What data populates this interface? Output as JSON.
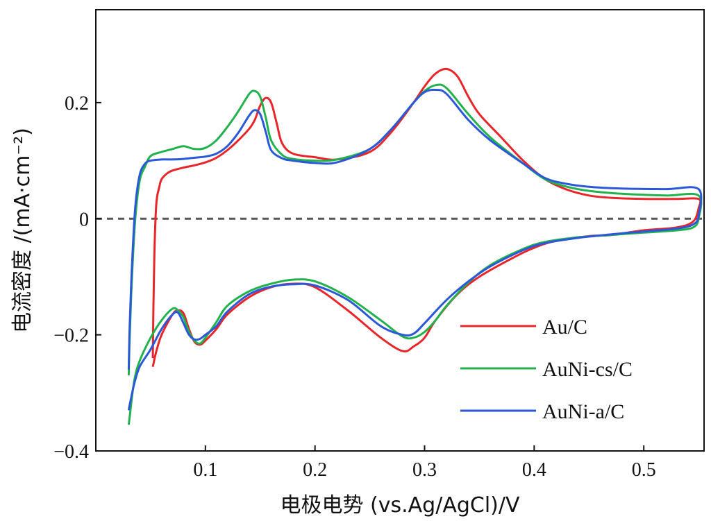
{
  "chart_data": {
    "type": "line",
    "xlabel": "电极电势 (vs.Ag/AgCl)/V",
    "ylabel": "电流密度 /(mA·cm⁻²)",
    "xlim": [
      0.0,
      0.555
    ],
    "ylim": [
      -0.4,
      0.36
    ],
    "xticks": [
      0.1,
      0.2,
      0.3,
      0.4,
      0.5
    ],
    "xtick_labels": [
      "0.1",
      "0.2",
      "0.3",
      "0.4",
      "0.5"
    ],
    "yticks": [
      0.2,
      0.0,
      -0.2,
      -0.4
    ],
    "ytick_labels": [
      "0.2",
      "0",
      "−0.2",
      "−0.4"
    ],
    "reference_line": {
      "y": 0,
      "style": "dashed",
      "color": "#555555"
    },
    "legend_position": "bottom-right",
    "grid": false,
    "series": [
      {
        "name": "Au/C",
        "color": "#e8262a",
        "x": [
          0.052,
          0.053,
          0.055,
          0.058,
          0.06,
          0.065,
          0.07,
          0.08,
          0.09,
          0.1,
          0.11,
          0.12,
          0.13,
          0.14,
          0.145,
          0.15,
          0.155,
          0.16,
          0.165,
          0.17,
          0.18,
          0.2,
          0.22,
          0.25,
          0.27,
          0.29,
          0.3,
          0.31,
          0.32,
          0.33,
          0.34,
          0.35,
          0.37,
          0.39,
          0.41,
          0.43,
          0.45,
          0.47,
          0.5,
          0.53,
          0.55,
          0.55,
          0.545,
          0.53,
          0.5,
          0.47,
          0.45,
          0.42,
          0.4,
          0.38,
          0.35,
          0.33,
          0.31,
          0.3,
          0.29,
          0.28,
          0.26,
          0.23,
          0.2,
          0.18,
          0.16,
          0.14,
          0.12,
          0.11,
          0.1,
          0.095,
          0.09,
          0.085,
          0.08,
          0.075,
          0.07,
          0.06,
          0.055,
          0.052
        ],
        "y": [
          -0.24,
          -0.1,
          0.02,
          0.055,
          0.068,
          0.078,
          0.083,
          0.088,
          0.092,
          0.097,
          0.105,
          0.118,
          0.135,
          0.155,
          0.17,
          0.195,
          0.208,
          0.2,
          0.165,
          0.13,
          0.112,
          0.106,
          0.102,
          0.115,
          0.15,
          0.2,
          0.228,
          0.25,
          0.258,
          0.245,
          0.21,
          0.18,
          0.14,
          0.1,
          0.068,
          0.05,
          0.04,
          0.036,
          0.034,
          0.034,
          0.034,
          0.018,
          -0.005,
          -0.015,
          -0.02,
          -0.028,
          -0.03,
          -0.038,
          -0.05,
          -0.068,
          -0.1,
          -0.13,
          -0.175,
          -0.205,
          -0.22,
          -0.228,
          -0.205,
          -0.158,
          -0.118,
          -0.112,
          -0.118,
          -0.135,
          -0.165,
          -0.19,
          -0.21,
          -0.217,
          -0.212,
          -0.19,
          -0.163,
          -0.158,
          -0.165,
          -0.2,
          -0.23,
          -0.255
        ]
      },
      {
        "name": "AuNi-cs/C",
        "color": "#22b24c",
        "x": [
          0.03,
          0.031,
          0.033,
          0.036,
          0.04,
          0.045,
          0.05,
          0.06,
          0.07,
          0.08,
          0.09,
          0.1,
          0.11,
          0.12,
          0.13,
          0.14,
          0.145,
          0.15,
          0.155,
          0.16,
          0.17,
          0.18,
          0.2,
          0.22,
          0.25,
          0.27,
          0.29,
          0.3,
          0.31,
          0.32,
          0.34,
          0.36,
          0.39,
          0.41,
          0.43,
          0.45,
          0.48,
          0.52,
          0.55,
          0.55,
          0.545,
          0.53,
          0.5,
          0.47,
          0.44,
          0.41,
          0.39,
          0.36,
          0.34,
          0.32,
          0.31,
          0.3,
          0.29,
          0.28,
          0.26,
          0.23,
          0.2,
          0.18,
          0.16,
          0.14,
          0.12,
          0.11,
          0.1,
          0.095,
          0.09,
          0.085,
          0.08,
          0.075,
          0.07,
          0.06,
          0.05,
          0.04,
          0.035,
          0.031,
          0.03
        ],
        "y": [
          -0.27,
          -0.2,
          -0.1,
          0.0,
          0.065,
          0.09,
          0.108,
          0.115,
          0.12,
          0.125,
          0.12,
          0.122,
          0.135,
          0.158,
          0.185,
          0.215,
          0.22,
          0.21,
          0.175,
          0.135,
          0.11,
          0.103,
          0.1,
          0.102,
          0.12,
          0.155,
          0.2,
          0.22,
          0.23,
          0.225,
          0.18,
          0.14,
          0.095,
          0.068,
          0.055,
          0.048,
          0.043,
          0.04,
          0.04,
          0.0,
          -0.015,
          -0.02,
          -0.024,
          -0.028,
          -0.032,
          -0.04,
          -0.052,
          -0.08,
          -0.11,
          -0.15,
          -0.175,
          -0.195,
          -0.205,
          -0.203,
          -0.175,
          -0.135,
          -0.108,
          -0.105,
          -0.112,
          -0.125,
          -0.15,
          -0.178,
          -0.205,
          -0.215,
          -0.21,
          -0.195,
          -0.17,
          -0.158,
          -0.155,
          -0.175,
          -0.205,
          -0.245,
          -0.28,
          -0.34,
          -0.355
        ]
      },
      {
        "name": "AuNi-a/C",
        "color": "#2a58d8",
        "x": [
          0.03,
          0.031,
          0.033,
          0.036,
          0.04,
          0.045,
          0.05,
          0.06,
          0.07,
          0.08,
          0.09,
          0.1,
          0.11,
          0.12,
          0.13,
          0.14,
          0.145,
          0.15,
          0.155,
          0.16,
          0.17,
          0.18,
          0.2,
          0.22,
          0.25,
          0.27,
          0.29,
          0.3,
          0.31,
          0.32,
          0.34,
          0.36,
          0.39,
          0.41,
          0.43,
          0.45,
          0.48,
          0.52,
          0.55,
          0.55,
          0.545,
          0.53,
          0.5,
          0.47,
          0.44,
          0.41,
          0.39,
          0.36,
          0.34,
          0.32,
          0.3,
          0.29,
          0.28,
          0.26,
          0.23,
          0.2,
          0.18,
          0.16,
          0.14,
          0.12,
          0.11,
          0.1,
          0.095,
          0.09,
          0.085,
          0.08,
          0.075,
          0.07,
          0.06,
          0.05,
          0.04,
          0.035,
          0.031,
          0.03
        ],
        "y": [
          -0.26,
          -0.18,
          -0.08,
          0.02,
          0.075,
          0.095,
          0.1,
          0.102,
          0.102,
          0.103,
          0.105,
          0.107,
          0.112,
          0.125,
          0.148,
          0.178,
          0.187,
          0.18,
          0.15,
          0.118,
          0.104,
          0.1,
          0.096,
          0.097,
          0.12,
          0.155,
          0.2,
          0.218,
          0.222,
          0.215,
          0.17,
          0.135,
          0.095,
          0.07,
          0.06,
          0.055,
          0.052,
          0.051,
          0.051,
          0.005,
          -0.01,
          -0.017,
          -0.022,
          -0.027,
          -0.033,
          -0.042,
          -0.054,
          -0.082,
          -0.108,
          -0.14,
          -0.18,
          -0.198,
          -0.2,
          -0.185,
          -0.14,
          -0.115,
          -0.113,
          -0.117,
          -0.13,
          -0.16,
          -0.185,
          -0.2,
          -0.207,
          -0.208,
          -0.2,
          -0.18,
          -0.162,
          -0.165,
          -0.19,
          -0.225,
          -0.255,
          -0.285,
          -0.32,
          -0.33
        ]
      }
    ]
  }
}
